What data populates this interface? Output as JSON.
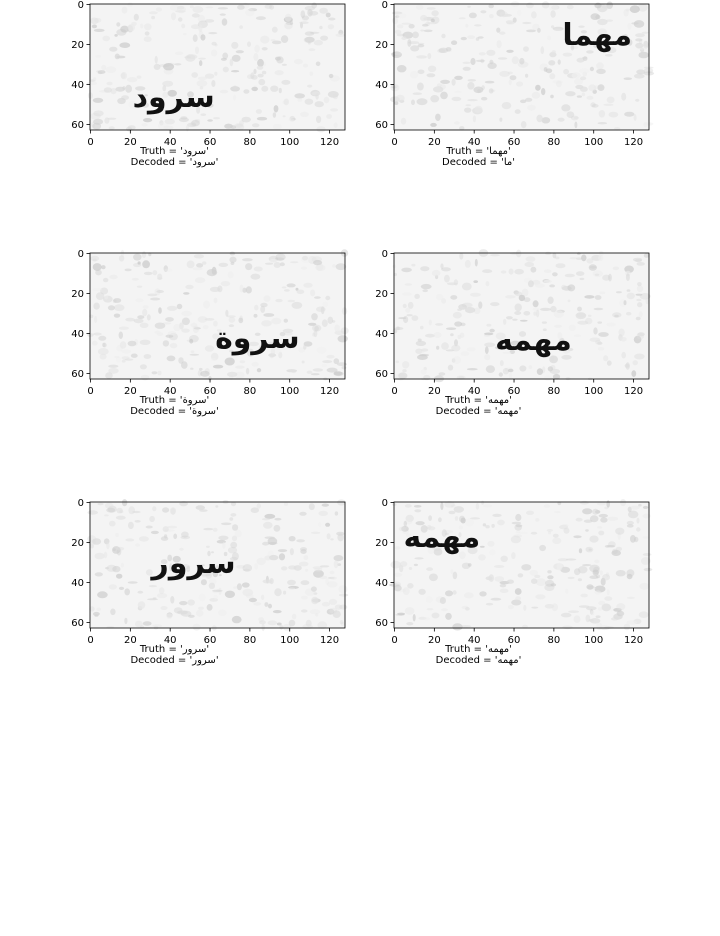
{
  "chart_data": [
    {
      "type": "image",
      "xticks": [
        "0",
        "20",
        "40",
        "60",
        "80",
        "100",
        "120"
      ],
      "yticks": [
        "0",
        "20",
        "40",
        "60"
      ],
      "xlim": [
        0,
        128
      ],
      "ylim": [
        63,
        0
      ],
      "word": "سرود",
      "word_center": [
        42,
        47
      ],
      "truth_label": "Truth = 'سرود'",
      "decoded_label": "Decoded = 'سرود'"
    },
    {
      "type": "image",
      "xticks": [
        "0",
        "20",
        "40",
        "60",
        "80",
        "100",
        "120"
      ],
      "yticks": [
        "0",
        "20",
        "40",
        "60"
      ],
      "xlim": [
        0,
        128
      ],
      "ylim": [
        63,
        0
      ],
      "word": "مهما",
      "word_center": [
        102,
        16
      ],
      "truth_label": "Truth = 'مهما'",
      "decoded_label": "Decoded = 'ما'"
    },
    {
      "type": "image",
      "xticks": [
        "0",
        "20",
        "40",
        "60",
        "80",
        "100",
        "120"
      ],
      "yticks": [
        "0",
        "20",
        "40",
        "60"
      ],
      "xlim": [
        0,
        128
      ],
      "ylim": [
        63,
        0
      ],
      "word": "سروة",
      "word_center": [
        84,
        43
      ],
      "truth_label": "Truth = 'سروة'",
      "decoded_label": "Decoded = 'سروة'"
    },
    {
      "type": "image",
      "xticks": [
        "0",
        "20",
        "40",
        "60",
        "80",
        "100",
        "120"
      ],
      "yticks": [
        "0",
        "20",
        "40",
        "60"
      ],
      "xlim": [
        0,
        128
      ],
      "ylim": [
        63,
        0
      ],
      "word": "مهمه",
      "word_center": [
        70,
        44
      ],
      "truth_label": "Truth = 'مهمه'",
      "decoded_label": "Decoded = 'مهمه'"
    },
    {
      "type": "image",
      "xticks": [
        "0",
        "20",
        "40",
        "60",
        "80",
        "100",
        "120"
      ],
      "yticks": [
        "0",
        "20",
        "40",
        "60"
      ],
      "xlim": [
        0,
        128
      ],
      "ylim": [
        63,
        0
      ],
      "word": "سرور",
      "word_center": [
        52,
        31
      ],
      "truth_label": "Truth = 'سرور'",
      "decoded_label": "Decoded = 'سرور'"
    },
    {
      "type": "image",
      "xticks": [
        "0",
        "20",
        "40",
        "60",
        "80",
        "100",
        "120"
      ],
      "yticks": [
        "0",
        "20",
        "40",
        "60"
      ],
      "xlim": [
        0,
        128
      ],
      "ylim": [
        63,
        0
      ],
      "word": "مهمه",
      "word_center": [
        24,
        18
      ],
      "truth_label": "Truth = 'مهمه'",
      "decoded_label": "Decoded = 'مهمه'"
    }
  ]
}
